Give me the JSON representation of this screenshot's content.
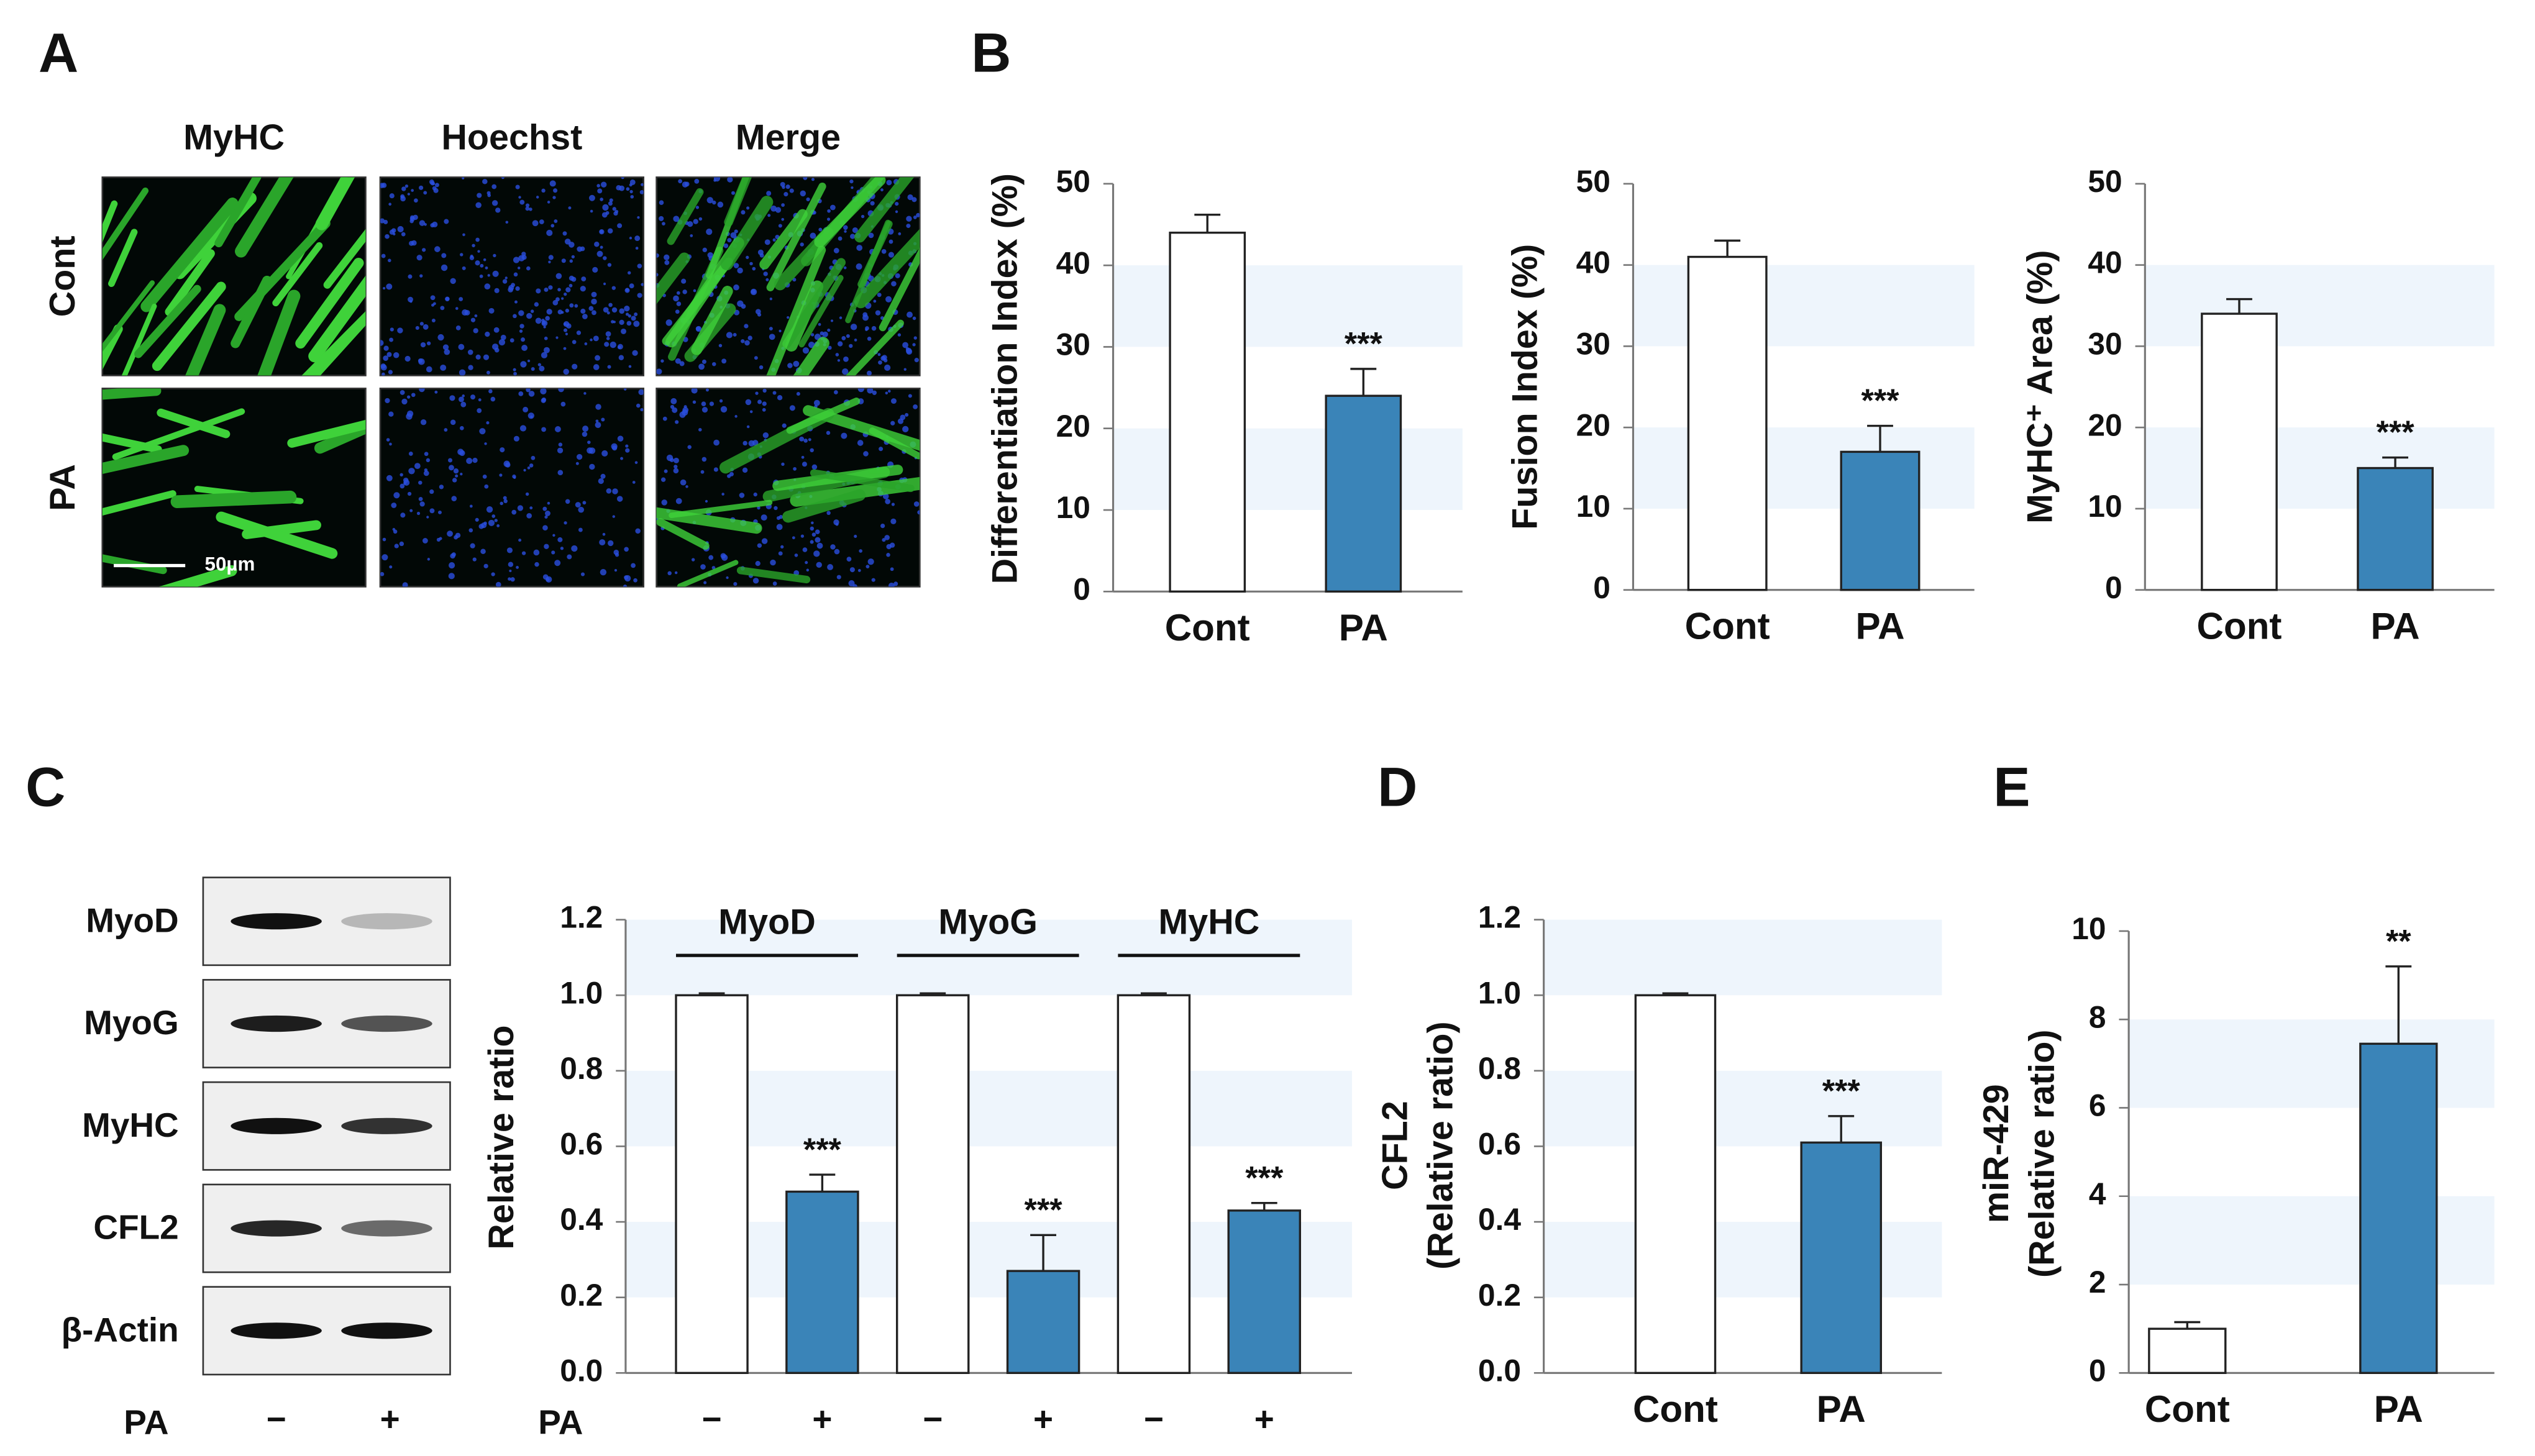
{
  "panels": [
    "A",
    "B",
    "C",
    "D",
    "E"
  ],
  "images": {
    "columns": [
      "MyHC",
      "Hoechst",
      "Merge"
    ],
    "rows": [
      "Cont",
      "PA"
    ],
    "scale_bar": "50µm"
  },
  "blot": {
    "rows": [
      "MyoD",
      "MyoG",
      "MyHC",
      "CFL2",
      "β-Actin"
    ],
    "treatment": "PA",
    "lanes": [
      "−",
      "+"
    ]
  },
  "chart_data": [
    {
      "type": "bar",
      "ylabel": "Differentiation Index (%)",
      "categories": [
        "Cont",
        "PA"
      ],
      "values": [
        44,
        24
      ],
      "errors": [
        2.2,
        3.3
      ],
      "colors": [
        "#ffffff",
        "#3a84b8"
      ],
      "significance": [
        null,
        "***"
      ],
      "ylim": [
        0,
        50
      ],
      "yticks": [
        0,
        10,
        20,
        30,
        40,
        50
      ],
      "stripe_color": "#eef5fc"
    },
    {
      "type": "bar",
      "ylabel": "Fusion Index (%)",
      "categories": [
        "Cont",
        "PA"
      ],
      "values": [
        41,
        17
      ],
      "errors": [
        2,
        3.2
      ],
      "colors": [
        "#ffffff",
        "#3a84b8"
      ],
      "significance": [
        null,
        "***"
      ],
      "ylim": [
        0,
        50
      ],
      "yticks": [
        0,
        10,
        20,
        30,
        40,
        50
      ],
      "stripe_color": "#eef5fc"
    },
    {
      "type": "bar",
      "ylabel": "MyHC⁺ Area (%)",
      "categories": [
        "Cont",
        "PA"
      ],
      "values": [
        34,
        15
      ],
      "errors": [
        1.8,
        1.3
      ],
      "colors": [
        "#ffffff",
        "#3a84b8"
      ],
      "significance": [
        null,
        "***"
      ],
      "ylim": [
        0,
        50
      ],
      "yticks": [
        0,
        10,
        20,
        30,
        40,
        50
      ],
      "stripe_color": "#eef5fc"
    },
    {
      "type": "grouped_bar",
      "ylabel": "Relative ratio",
      "x_label": "PA",
      "categories": [
        "MyoD",
        "MyoG",
        "MyHC"
      ],
      "series": [
        {
          "name": "−",
          "color": "#ffffff",
          "values": [
            1.0,
            1.0,
            1.0
          ],
          "errors": [
            0.005,
            0.005,
            0.005
          ],
          "significance": [
            null,
            null,
            null
          ]
        },
        {
          "name": "+",
          "color": "#3a84b8",
          "values": [
            0.48,
            0.27,
            0.43
          ],
          "errors": [
            0.045,
            0.095,
            0.02
          ],
          "significance": [
            "***",
            "***",
            "***"
          ]
        }
      ],
      "ylim": [
        0,
        1.2
      ],
      "yticks": [
        {
          "value": 0,
          "label": "0.0"
        },
        {
          "value": 0.2,
          "label": "0.2"
        },
        {
          "value": 0.4,
          "label": "0.4"
        },
        {
          "value": 0.6,
          "label": "0.6"
        },
        {
          "value": 0.8,
          "label": "0.8"
        },
        {
          "value": 1,
          "label": "1.0"
        },
        {
          "value": 1.2,
          "label": "1.2"
        }
      ],
      "stripe_color": "#eef5fc"
    },
    {
      "type": "bar",
      "ylabel": [
        "CFL2",
        "(Relative ratio)"
      ],
      "categories": [
        "Cont",
        "PA"
      ],
      "values": [
        1.0,
        0.61
      ],
      "errors": [
        0.005,
        0.07
      ],
      "colors": [
        "#ffffff",
        "#3a84b8"
      ],
      "significance": [
        null,
        "***"
      ],
      "ylim": [
        0,
        1.2
      ],
      "yticks": [
        {
          "value": 0,
          "label": "0.0"
        },
        {
          "value": 0.2,
          "label": "0.2"
        },
        {
          "value": 0.4,
          "label": "0.4"
        },
        {
          "value": 0.6,
          "label": "0.6"
        },
        {
          "value": 0.8,
          "label": "0.8"
        },
        {
          "value": 1,
          "label": "1.0"
        },
        {
          "value": 1.2,
          "label": "1.2"
        }
      ],
      "stripe_color": "#eef5fc"
    },
    {
      "type": "bar",
      "ylabel": [
        "miR-429",
        "(Relative ratio)"
      ],
      "categories": [
        "Cont",
        "PA"
      ],
      "values": [
        1.0,
        7.45
      ],
      "errors": [
        0.15,
        1.75
      ],
      "colors": [
        "#ffffff",
        "#3a84b8"
      ],
      "significance": [
        null,
        "**"
      ],
      "ylim": [
        0,
        10
      ],
      "yticks": [
        0,
        2,
        4,
        6,
        8,
        10
      ],
      "stripe_color": "#eef5fc"
    }
  ]
}
